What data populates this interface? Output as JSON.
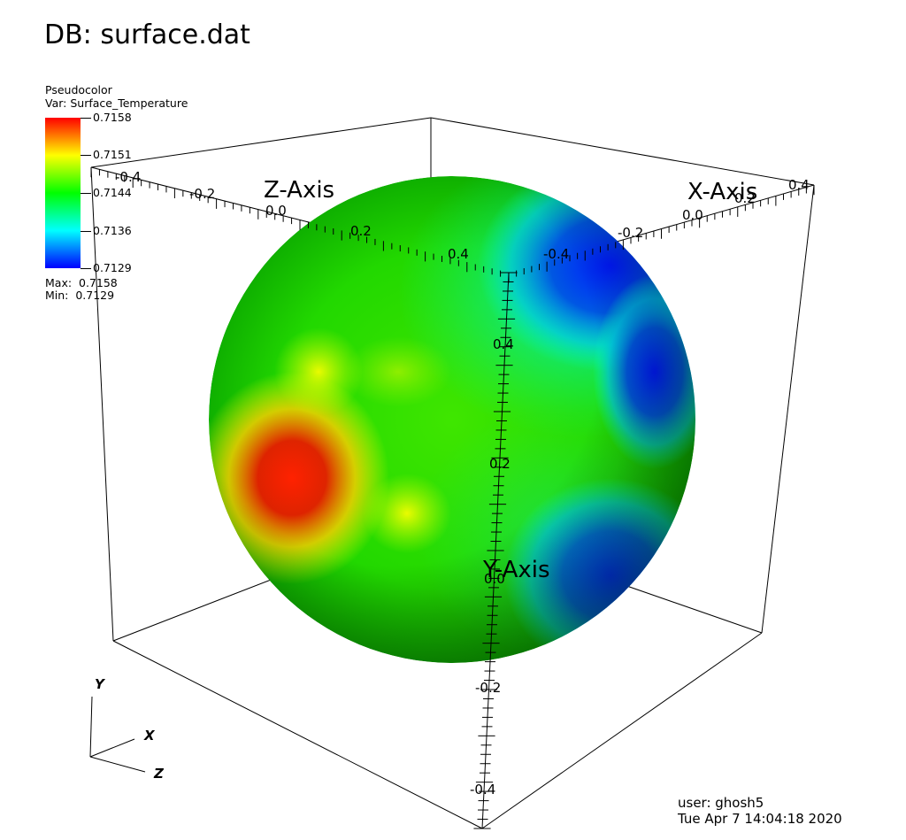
{
  "header": {
    "db_title": "DB: surface.dat"
  },
  "legend": {
    "plot_type": "Pseudocolor",
    "variable": "Var: Surface_Temperature",
    "ticks": [
      "0.7158",
      "0.7151",
      "0.7144",
      "0.7136",
      "0.7129"
    ],
    "max": "Max:  0.7158",
    "min": "Min:  0.7129",
    "colors": [
      "#ff0000",
      "#ffff00",
      "#00ff00",
      "#00ffff",
      "#0000ff"
    ]
  },
  "axes": {
    "x_title": "X-Axis",
    "y_title": "Y-Axis",
    "z_title": "Z-Axis",
    "z_ticks": [
      "-0.4",
      "-0.2",
      "0.0",
      "0.2",
      "0.4"
    ],
    "x_ticks": [
      "-0.4",
      "-0.2",
      "0.0",
      "0.2",
      "0.4"
    ],
    "y_ticks": [
      "0.4",
      "0.2",
      "0.0",
      "-0.2",
      "-0.4"
    ]
  },
  "triad": {
    "y": "Y",
    "x": "X",
    "z": "Z"
  },
  "footer": {
    "user": "user: ghosh5",
    "timestamp": "Tue Apr  7 14:04:18 2020"
  }
}
